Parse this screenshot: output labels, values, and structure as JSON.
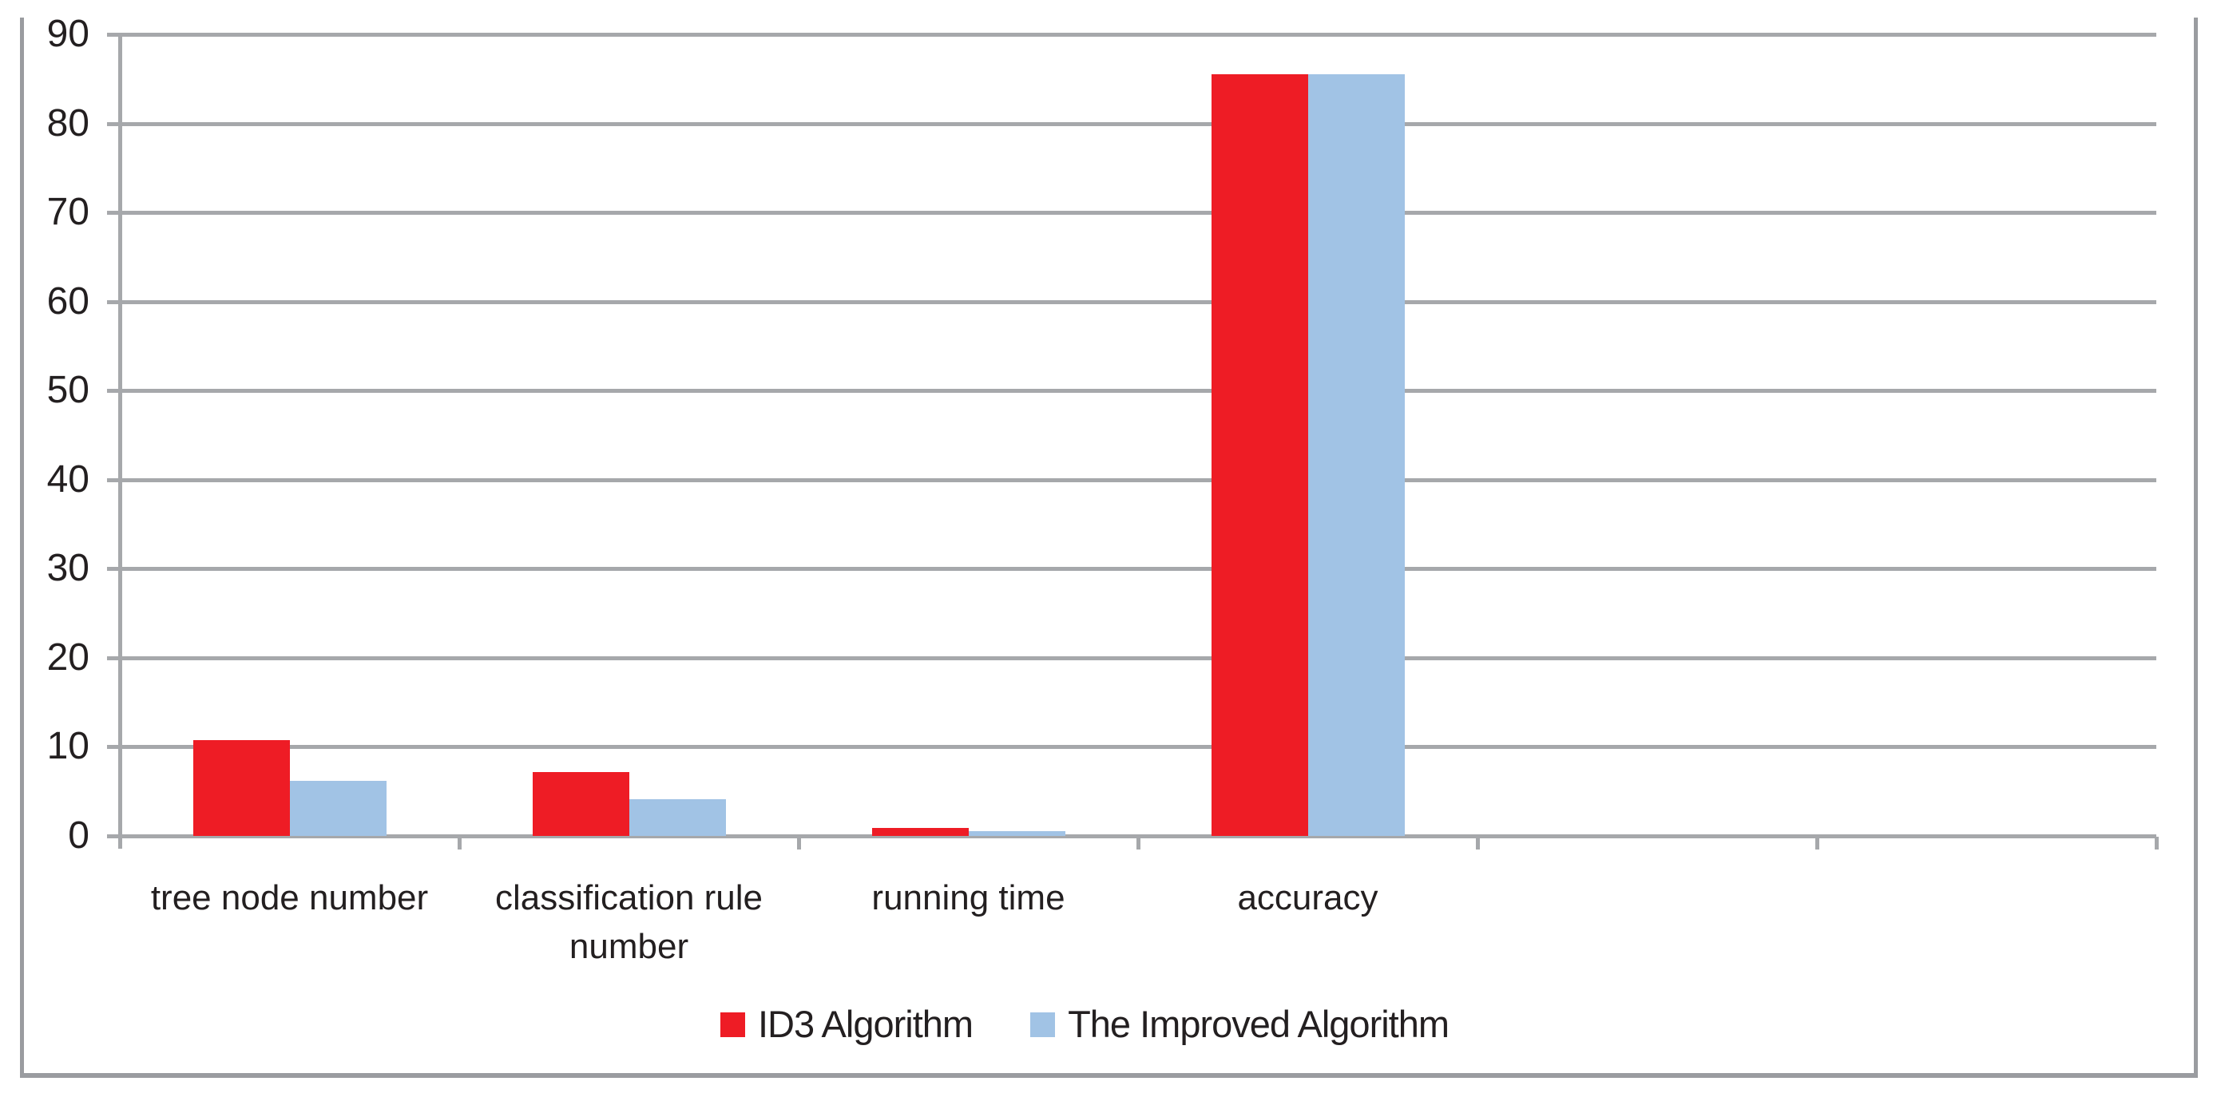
{
  "chart_data": {
    "type": "bar",
    "title": "",
    "xlabel": "",
    "ylabel": "",
    "categories": [
      "tree node number",
      "classification rule number",
      "running time",
      "accuracy",
      "",
      ""
    ],
    "category_label_breaks": [
      [
        "tree node number"
      ],
      [
        "classification rule",
        "number"
      ],
      [
        "running time"
      ],
      [
        "accuracy"
      ],
      [],
      []
    ],
    "series": [
      {
        "name": "ID3 Algorithm",
        "color": "#ee1c25",
        "values": [
          10.8,
          7.2,
          0.9,
          85.5,
          null,
          null
        ]
      },
      {
        "name": "The Improved Algorithm",
        "color": "#a1c3e5",
        "values": [
          6.2,
          4.1,
          0.5,
          85.5,
          null,
          null
        ]
      }
    ],
    "ylim": [
      0,
      90
    ],
    "yticks": [
      0,
      10,
      20,
      30,
      40,
      50,
      60,
      70,
      80,
      90
    ],
    "grid": true,
    "legend_position": "bottom"
  },
  "colors": {
    "grid": "#a6a8ab",
    "frame": "#9a9ca0",
    "text": "#231f20",
    "background": "#ffffff"
  }
}
